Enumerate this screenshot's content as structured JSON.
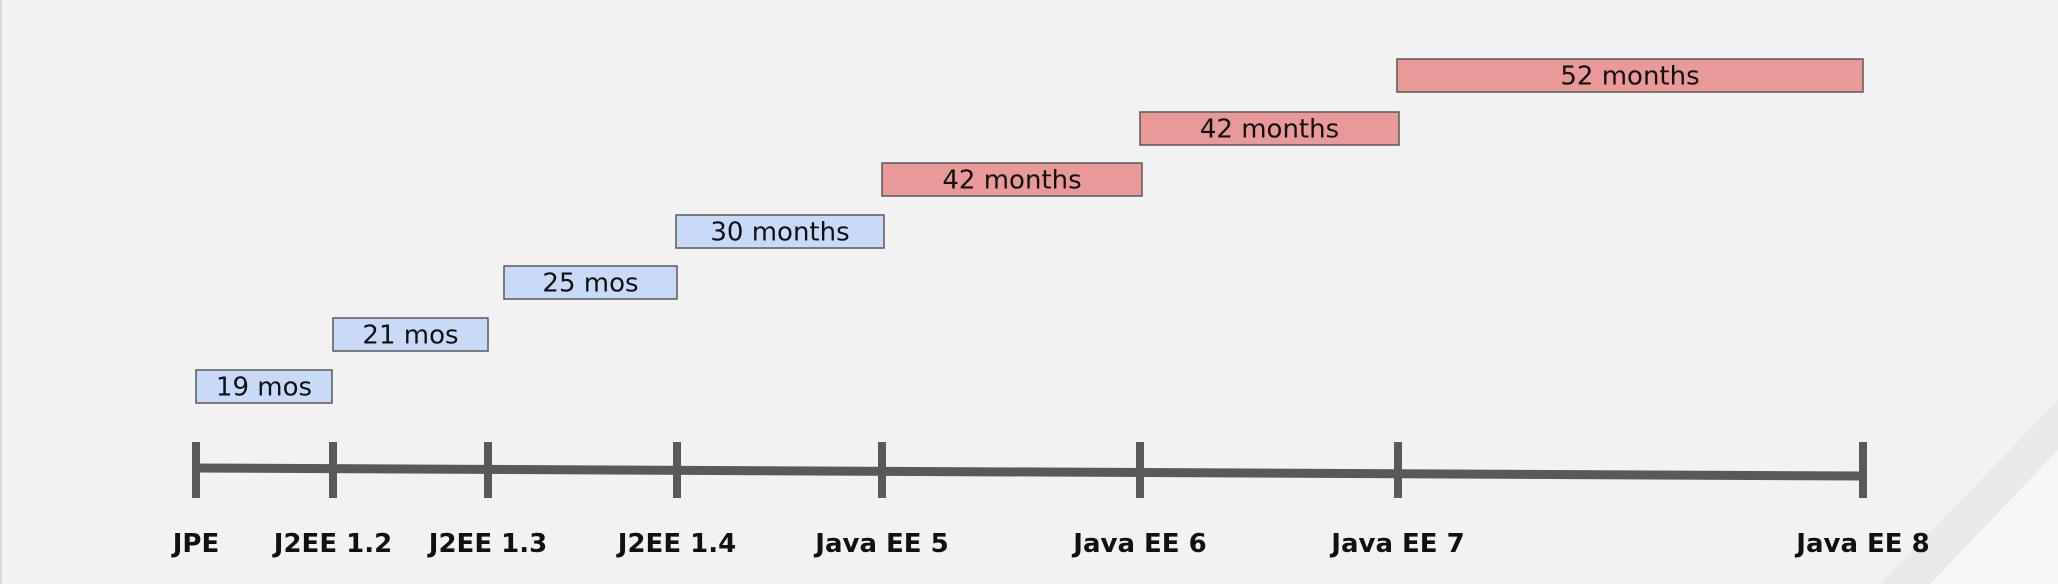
{
  "releases": [
    {
      "label": "JPE"
    },
    {
      "label": "J2EE 1.2"
    },
    {
      "label": "J2EE 1.3"
    },
    {
      "label": "J2EE 1.4"
    },
    {
      "label": "Java EE 5"
    },
    {
      "label": "Java EE 6"
    },
    {
      "label": "Java EE 7"
    },
    {
      "label": "Java EE 8"
    }
  ],
  "gaps": [
    {
      "label": "19 mos",
      "from": "JPE",
      "to": "J2EE 1.2",
      "months": 19,
      "color": "#c9daf8"
    },
    {
      "label": "21 mos",
      "from": "J2EE 1.2",
      "to": "J2EE 1.3",
      "months": 21,
      "color": "#c9daf8"
    },
    {
      "label": "25 mos",
      "from": "J2EE 1.3",
      "to": "J2EE 1.4",
      "months": 25,
      "color": "#c9daf8"
    },
    {
      "label": "30 months",
      "from": "J2EE 1.4",
      "to": "Java EE 5",
      "months": 30,
      "color": "#c9daf8"
    },
    {
      "label": "42 months",
      "from": "Java EE 5",
      "to": "Java EE 6",
      "months": 42,
      "color": "#ea9999"
    },
    {
      "label": "42 months",
      "from": "Java EE 6",
      "to": "Java EE 7",
      "months": 42,
      "color": "#ea9999"
    },
    {
      "label": "52 months",
      "from": "Java EE 7",
      "to": "Java EE 8",
      "months": 52,
      "color": "#ea9999"
    }
  ],
  "colors": {
    "background": "#f2f2f2",
    "axis": "#595959",
    "bar_border": "#595959",
    "short_gap": "#c9daf8",
    "long_gap": "#ea9999"
  }
}
